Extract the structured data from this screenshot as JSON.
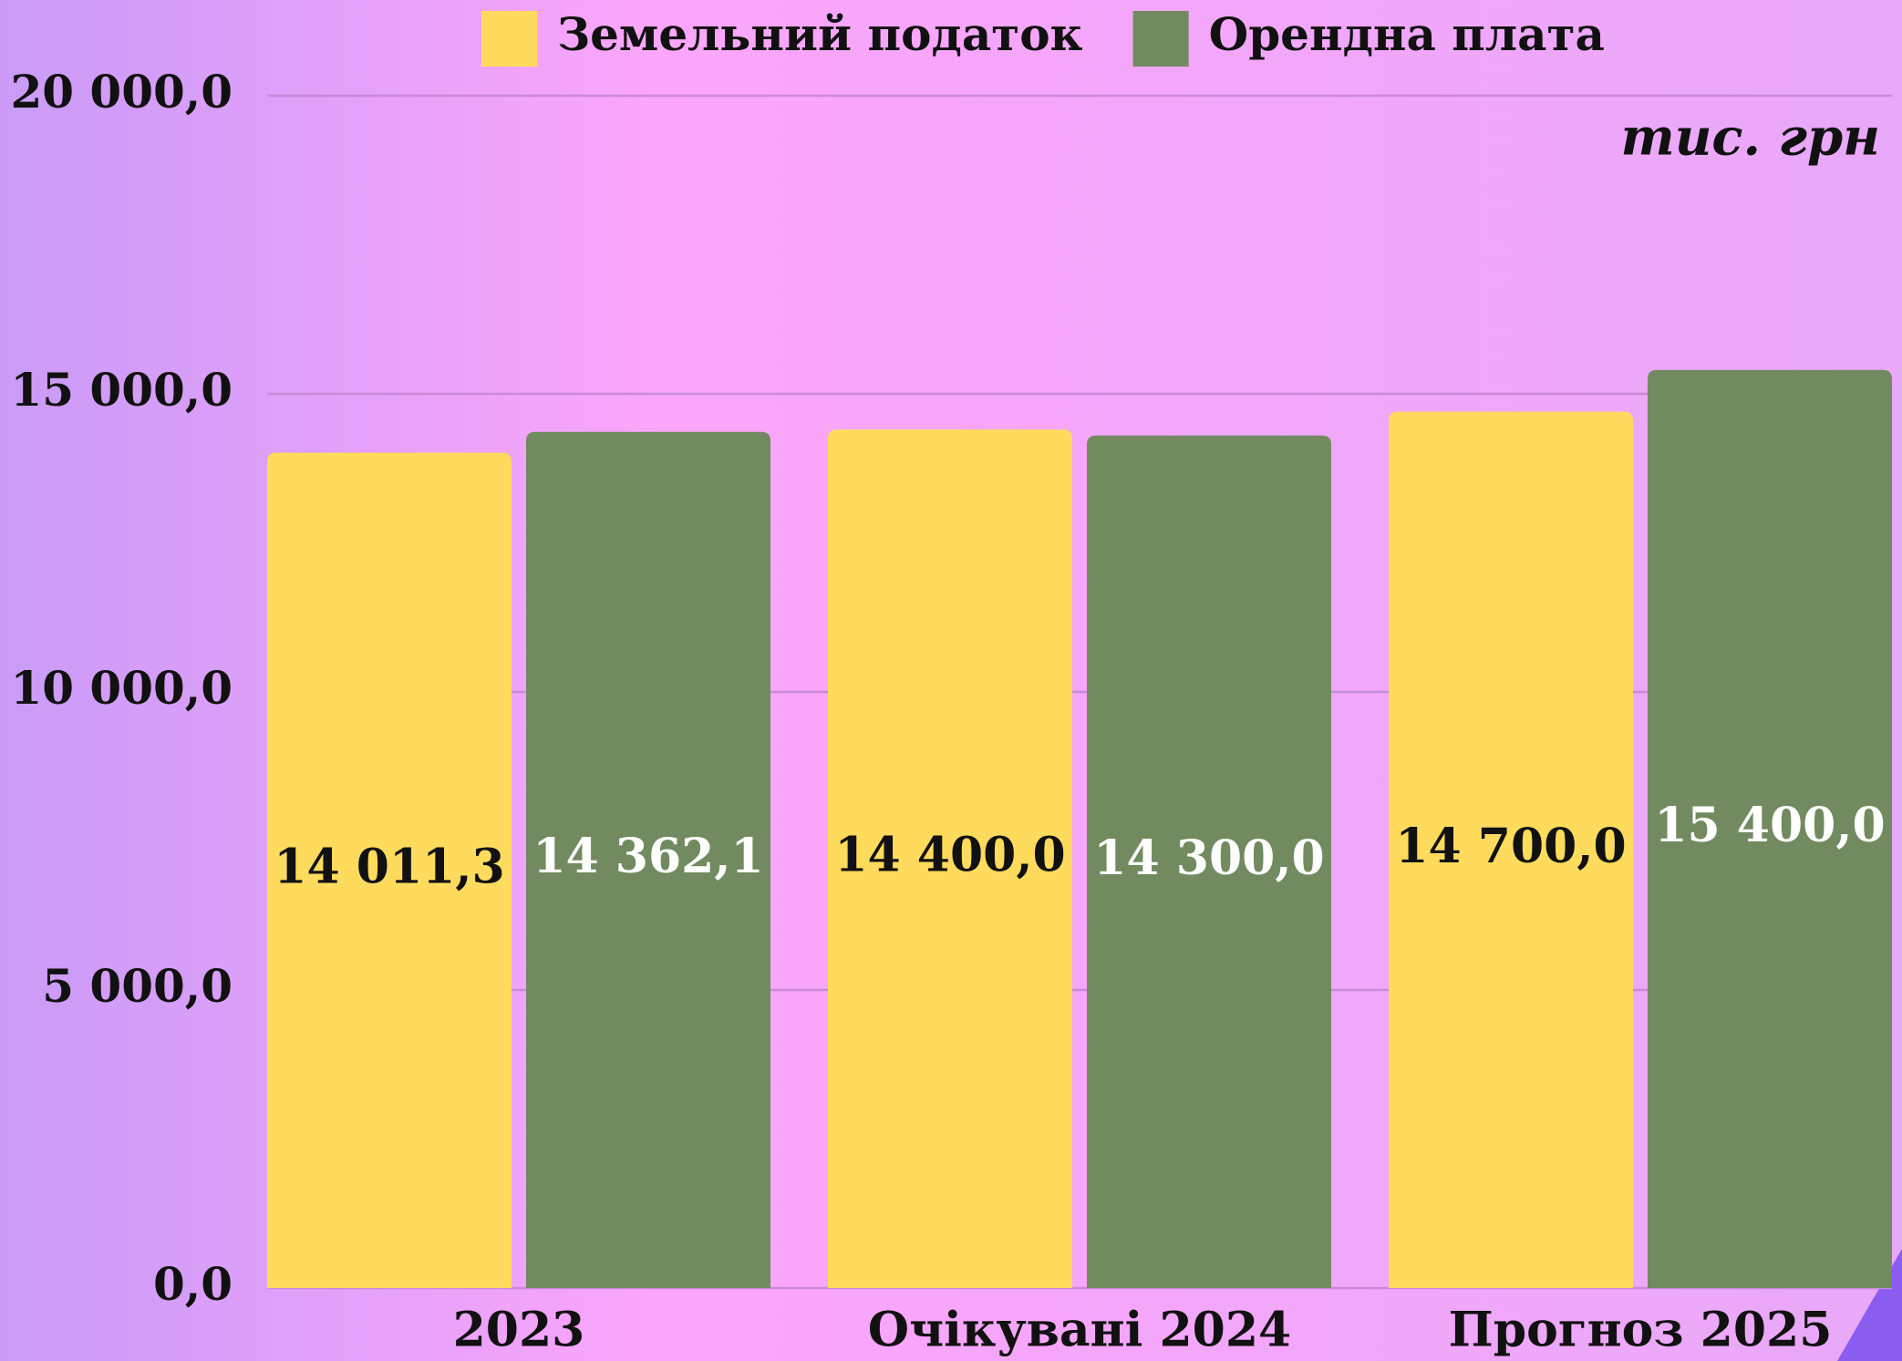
{
  "chart_data": {
    "type": "bar",
    "annotation": "тис. грн",
    "categories": [
      "2023",
      "Очікувані 2024",
      "Прогноз 2025"
    ],
    "series": [
      {
        "name": "Земельний податок",
        "color": "#fedb5c",
        "label_color": "#111111",
        "values": [
          14011.3,
          14400.0,
          14700.0
        ],
        "value_labels": [
          "14 011,3",
          "14 400,0",
          "14 700,0"
        ]
      },
      {
        "name": "Орендна плата",
        "color": "#718a5f",
        "label_color": "#ffffff",
        "values": [
          14362.1,
          14300.0,
          15400.0
        ],
        "value_labels": [
          "14 362,1",
          "14 300,0",
          "15 400,0"
        ]
      }
    ],
    "ylim": [
      0,
      20000
    ],
    "yticks": [
      {
        "value": 0,
        "label": "0,0"
      },
      {
        "value": 5000,
        "label": "5 000,0"
      },
      {
        "value": 10000,
        "label": "10 000,0"
      },
      {
        "value": 15000,
        "label": "15 000,0"
      },
      {
        "value": 20000,
        "label": "20 000,0"
      }
    ],
    "grid": true,
    "legend": "top"
  }
}
